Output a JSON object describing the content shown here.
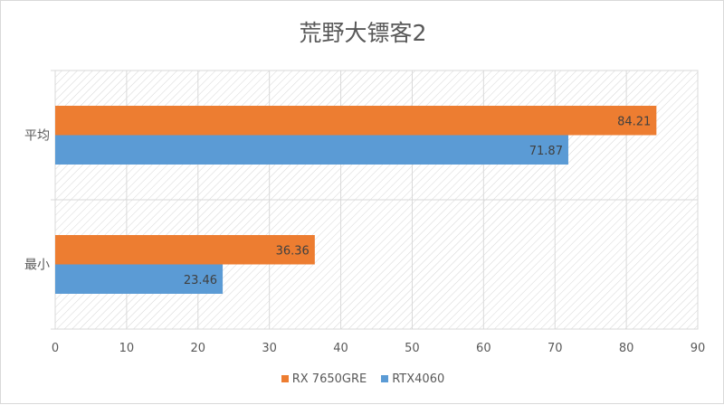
{
  "chart_data": {
    "type": "bar",
    "orientation": "horizontal",
    "title": "荒野大镖客2",
    "categories": [
      "平均",
      "最小"
    ],
    "series": [
      {
        "name": "RX 7650GRE",
        "color": "#ED7D31",
        "values": [
          84.21,
          36.36
        ]
      },
      {
        "name": "RTX4060",
        "color": "#5B9BD5",
        "values": [
          71.87,
          23.46
        ]
      }
    ],
    "xlim": [
      0,
      90
    ],
    "xticks": [
      0,
      10,
      20,
      30,
      40,
      50,
      60,
      70,
      80,
      90
    ],
    "grid": true,
    "background": "diagonal hatch",
    "legend": "bottom",
    "data_labels": true
  }
}
